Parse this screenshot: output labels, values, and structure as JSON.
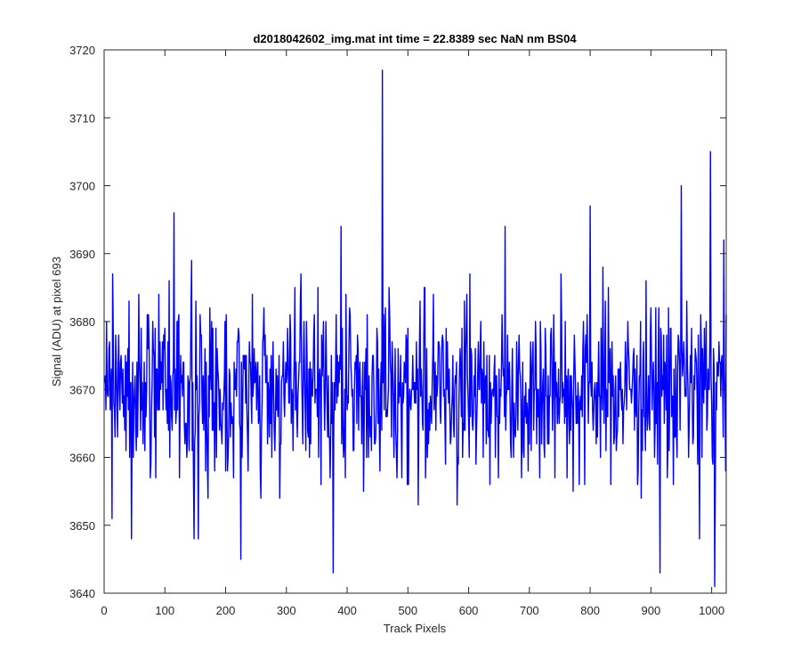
{
  "chart_data": {
    "type": "line",
    "title": "d2018042602_img.mat int time = 22.8389 sec  NaN nm BS04",
    "xlabel": "Track Pixels",
    "ylabel": "Signal (ADU) at pixel 693",
    "xlim": [
      0,
      1024
    ],
    "ylim": [
      3640,
      3720
    ],
    "xticks": [
      0,
      100,
      200,
      300,
      400,
      500,
      600,
      700,
      800,
      900,
      1000
    ],
    "yticks": [
      3640,
      3650,
      3660,
      3670,
      3680,
      3690,
      3700,
      3710,
      3720
    ],
    "grid": false,
    "legend": "none",
    "series": [
      {
        "color": "#0000ff",
        "x_start": 1,
        "x_step": 1,
        "count": 1024,
        "mean": 3670,
        "noise_sd": 6.5,
        "peaks": [
          {
            "x": 458,
            "y": 3717
          },
          {
            "x": 998,
            "y": 3705
          },
          {
            "x": 950,
            "y": 3700
          },
          {
            "x": 115,
            "y": 3696
          },
          {
            "x": 800,
            "y": 3697
          },
          {
            "x": 390,
            "y": 3694
          },
          {
            "x": 660,
            "y": 3694
          },
          {
            "x": 45,
            "y": 3692
          },
          {
            "x": 1020,
            "y": 3692
          }
        ],
        "troughs": [
          {
            "x": 377,
            "y": 3643
          },
          {
            "x": 915,
            "y": 3643
          },
          {
            "x": 1005,
            "y": 3641
          },
          {
            "x": 225,
            "y": 3645
          },
          {
            "x": 45,
            "y": 3648
          },
          {
            "x": 148,
            "y": 3648
          },
          {
            "x": 155,
            "y": 3648
          },
          {
            "x": 980,
            "y": 3648
          },
          {
            "x": 13,
            "y": 3651
          }
        ]
      }
    ]
  }
}
